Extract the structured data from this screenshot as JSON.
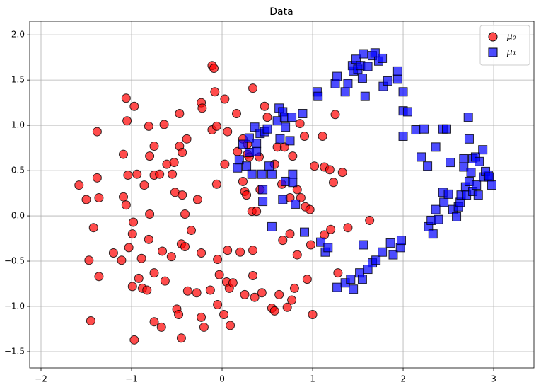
{
  "chart_data": {
    "type": "scatter",
    "title": "Data",
    "xlim": [
      -2.125,
      3.445
    ],
    "ylim": [
      -1.68,
      2.15
    ],
    "xticks": [
      {
        "value": -2,
        "label": "−2"
      },
      {
        "value": -1,
        "label": "−1"
      },
      0,
      1,
      2,
      3
    ],
    "yticks": [
      {
        "value": -1.5,
        "label": "−1.5"
      },
      {
        "value": -1.0,
        "label": "−1.0"
      },
      {
        "value": -0.5,
        "label": "−0.5"
      },
      {
        "value": 0,
        "label": "0.0"
      },
      {
        "value": 0.5,
        "label": "0.5"
      },
      {
        "value": 1.0,
        "label": "1.0"
      },
      1.5,
      {
        "value": 2.0,
        "label": "2.0"
      }
    ],
    "grid": true,
    "legend": "upper right",
    "series": [
      {
        "name": "μ₀",
        "color": "#ff0000",
        "marker": "circle",
        "x": [
          -1.58,
          -1.5,
          -1.38,
          -1.38,
          -1.36,
          -1.42,
          -1.47,
          -1.36,
          -1.45,
          -1.2,
          -1.11,
          -1.06,
          -1.05,
          -1.09,
          -1.09,
          -1.06,
          -1.04,
          -0.97,
          -0.98,
          -0.99,
          -1.03,
          -0.99,
          -0.97,
          -0.94,
          -0.86,
          -0.89,
          -0.92,
          -0.88,
          -0.81,
          -0.8,
          -0.8,
          -0.81,
          -0.83,
          -0.75,
          -0.75,
          -0.75,
          -0.75,
          -0.69,
          -0.67,
          -0.64,
          -0.66,
          -0.63,
          -0.61,
          -0.55,
          -0.56,
          -0.52,
          -0.53,
          -0.47,
          -0.47,
          -0.44,
          -0.44,
          -0.41,
          -0.45,
          -0.41,
          -0.5,
          -0.48,
          -0.45,
          -0.39,
          -0.38,
          -0.34,
          -0.28,
          -0.27,
          -0.23,
          -0.22,
          -0.23,
          -0.23,
          -0.2,
          -0.13,
          -0.11,
          -0.09,
          -0.11,
          -0.08,
          -0.06,
          -0.06,
          -0.05,
          -0.05,
          -0.03,
          0.02,
          0.03,
          0.03,
          0.06,
          0.06,
          0.05,
          0.08,
          0.09,
          0.12,
          0.16,
          0.17,
          0.2,
          0.23,
          0.23,
          0.25,
          0.27,
          0.25,
          0.28,
          0.28,
          0.3,
          0.33,
          0.34,
          0.36,
          0.38,
          0.34,
          0.34,
          0.41,
          0.42,
          0.44,
          0.47,
          0.5,
          0.55,
          0.58,
          0.58,
          0.61,
          0.66,
          0.63,
          0.67,
          0.69,
          0.72,
          0.75,
          0.75,
          0.77,
          0.8,
          0.83,
          0.78,
          0.83,
          0.86,
          0.87,
          0.91,
          0.92,
          0.94,
          0.97,
          0.98,
          1.0,
          1.02,
          1.11,
          1.13,
          1.13,
          1.19,
          1.2,
          1.23,
          1.25,
          1.28,
          1.33,
          1.39,
          1.63
        ],
        "values": [
          0.34,
          0.18,
          0.93,
          0.42,
          0.2,
          -0.13,
          -0.49,
          -0.67,
          -1.16,
          -0.41,
          -0.49,
          1.3,
          1.05,
          0.68,
          0.21,
          0.12,
          0.45,
          1.21,
          -0.07,
          -0.2,
          -0.35,
          -0.78,
          -1.37,
          0.46,
          0.34,
          -0.47,
          -0.69,
          -0.8,
          0.99,
          0.66,
          0.02,
          -0.26,
          -0.82,
          0.77,
          0.45,
          -0.63,
          -1.17,
          0.46,
          -1.23,
          1.01,
          -0.39,
          -0.72,
          0.57,
          0.46,
          -0.45,
          0.26,
          0.59,
          1.13,
          0.77,
          0.7,
          0.23,
          0.02,
          -0.31,
          -0.34,
          -1.03,
          -1.09,
          -1.35,
          0.85,
          -0.83,
          -0.16,
          -0.85,
          0.18,
          1.25,
          1.19,
          -0.41,
          -1.12,
          -1.23,
          -0.82,
          1.66,
          1.63,
          0.95,
          1.37,
          0.99,
          0.35,
          -0.48,
          -0.98,
          -0.65,
          -1.09,
          1.29,
          0.57,
          0.93,
          -0.38,
          -0.73,
          -0.8,
          -1.21,
          -0.74,
          1.13,
          0.71,
          -0.4,
          0.85,
          0.38,
          0.27,
          0.23,
          -0.87,
          0.79,
          0.68,
          0.65,
          0.05,
          1.41,
          -0.9,
          0.05,
          -0.38,
          -0.66,
          0.65,
          0.29,
          -0.85,
          1.21,
          1.09,
          -1.02,
          -1.05,
          0.57,
          0.76,
          0.35,
          -0.87,
          -0.27,
          0.76,
          -1.01,
          0.2,
          -0.2,
          -0.93,
          -0.8,
          -0.43,
          0.66,
          0.29,
          1.02,
          0.2,
          0.88,
          0.1,
          -0.7,
          0.07,
          -0.32,
          -1.09,
          0.55,
          0.88,
          0.54,
          -0.21,
          0.51,
          -0.15,
          0.37,
          1.12,
          -0.63,
          0.48,
          -0.13,
          -0.05
        ]
      },
      {
        "name": "μ₁",
        "color": "#0000ff",
        "marker": "square",
        "x": [
          0.17,
          0.19,
          0.23,
          0.27,
          0.3,
          0.3,
          0.33,
          0.36,
          0.38,
          0.38,
          0.42,
          0.44,
          0.45,
          0.45,
          0.47,
          0.5,
          0.52,
          0.55,
          0.55,
          0.61,
          0.63,
          0.64,
          0.67,
          0.67,
          0.69,
          0.7,
          0.7,
          0.75,
          0.77,
          0.78,
          0.78,
          0.81,
          0.89,
          0.91,
          1.05,
          1.06,
          1.09,
          1.14,
          1.17,
          1.25,
          1.27,
          1.27,
          1.36,
          1.36,
          1.39,
          1.42,
          1.44,
          1.45,
          1.45,
          1.48,
          1.5,
          1.52,
          1.53,
          1.55,
          1.55,
          1.56,
          1.56,
          1.58,
          1.61,
          1.61,
          1.66,
          1.66,
          1.69,
          1.7,
          1.73,
          1.77,
          1.77,
          1.78,
          1.83,
          1.86,
          1.89,
          1.94,
          1.94,
          1.97,
          1.98,
          2.0,
          2.0,
          2.0,
          2.05,
          2.14,
          2.2,
          2.23,
          2.27,
          2.28,
          2.31,
          2.33,
          2.36,
          2.36,
          2.39,
          2.44,
          2.44,
          2.45,
          2.48,
          2.5,
          2.52,
          2.55,
          2.59,
          2.61,
          2.63,
          2.64,
          2.67,
          2.67,
          2.69,
          2.7,
          2.72,
          2.73,
          2.73,
          2.75,
          2.77,
          2.77,
          2.8,
          2.81,
          2.83,
          2.84,
          2.88,
          2.89,
          2.91,
          2.94,
          2.95,
          2.98
        ],
        "values": [
          0.53,
          0.62,
          0.79,
          0.55,
          0.7,
          0.86,
          0.46,
          0.98,
          0.8,
          0.71,
          0.91,
          0.46,
          0.29,
          0.16,
          0.93,
          0.96,
          0.55,
          0.46,
          -0.12,
          1.05,
          1.19,
          0.85,
          1.15,
          0.18,
          1.09,
          0.38,
          0.98,
          0.83,
          1.09,
          0.46,
          0.37,
          0.13,
          1.13,
          -0.18,
          1.37,
          1.32,
          -0.29,
          -0.4,
          -0.35,
          1.46,
          1.54,
          -0.79,
          1.37,
          -0.74,
          1.46,
          -0.7,
          1.66,
          1.6,
          -0.81,
          1.73,
          1.62,
          -0.63,
          1.66,
          1.52,
          -0.7,
          1.79,
          -0.32,
          1.32,
          1.65,
          -0.59,
          1.77,
          -0.52,
          1.8,
          -0.49,
          1.71,
          1.74,
          -0.4,
          1.43,
          1.49,
          -0.3,
          -0.43,
          1.51,
          1.6,
          -0.35,
          -0.27,
          1.37,
          1.16,
          0.88,
          1.15,
          0.95,
          0.65,
          0.96,
          0.55,
          -0.12,
          -0.05,
          -0.2,
          0.76,
          0.07,
          -0.04,
          0.96,
          0.26,
          0.15,
          0.96,
          0.24,
          0.59,
          0.07,
          -0.01,
          0.1,
          0.15,
          0.23,
          0.63,
          0.54,
          0.32,
          0.23,
          1.09,
          0.38,
          0.85,
          0.48,
          0.63,
          0.27,
          0.65,
          0.34,
          0.23,
          0.6,
          0.73,
          0.43,
          0.49,
          0.45,
          0.43,
          0.34
        ]
      }
    ]
  }
}
